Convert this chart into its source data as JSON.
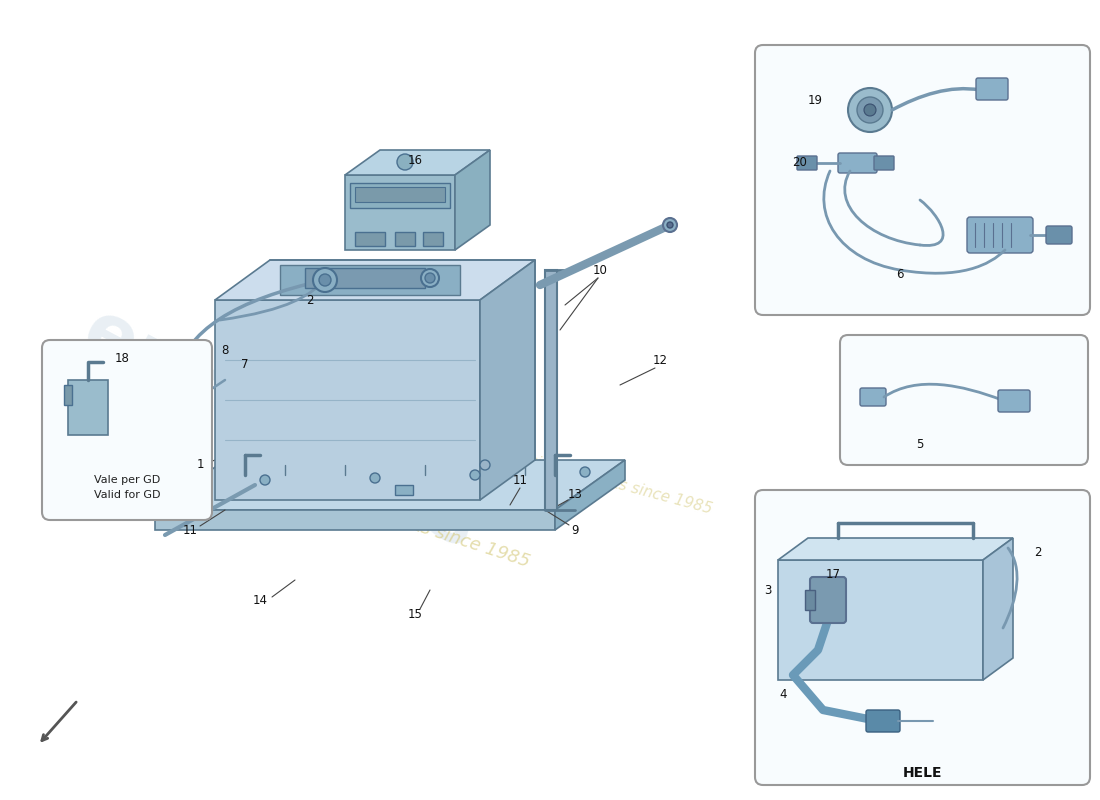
{
  "background_color": "#ffffff",
  "battery_face": "#b8cfe0",
  "battery_top": "#ccdded",
  "battery_right": "#96b4c8",
  "battery_detail": "#8aafc4",
  "tray_color": "#a8c4d4",
  "tray_top": "#c0d8e8",
  "plate_color": "#9abcd0",
  "plate_top": "#b8d4e4",
  "module_color": "#9abccc",
  "inset_bg": "#f8fcfe",
  "inset_border": "#aaaaaa",
  "cable_color": "#7898b0",
  "line_color": "#555555",
  "label_color": "#111111",
  "watermark_color": "#c8d8e4",
  "watermark_text_color": "#d4c878",
  "hele_label": "HELE",
  "vale_line1": "Vale per GD",
  "vale_line2": "Valid for GD"
}
